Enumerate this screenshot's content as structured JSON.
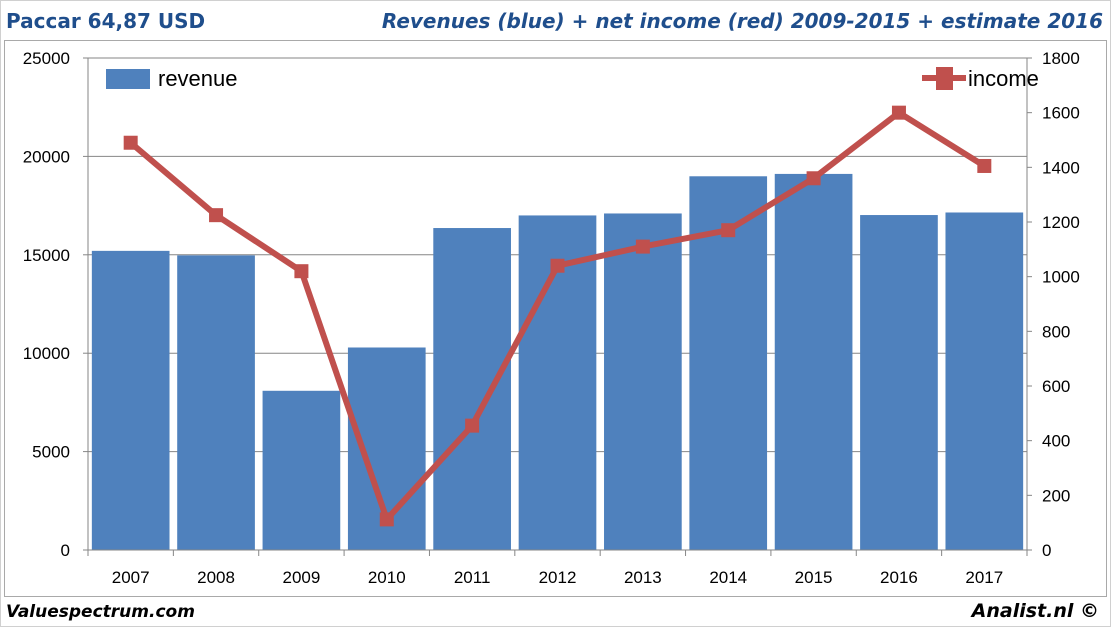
{
  "header": {
    "left_title": "Paccar 64,87 USD",
    "right_title": "Revenues (blue) + net income (red) 2009-2015 + estimate 2016"
  },
  "footer": {
    "left_text": "Valuespectrum.com",
    "right_text": "Analist.nl ©"
  },
  "colors": {
    "revenue": "#4f81bd",
    "income": "#c0504d",
    "title": "#1f4e8c",
    "grid": "#868686"
  },
  "chart_data": {
    "type": "bar",
    "title": "Revenues (blue) + net income (red) 2009-2015 + estimate 2016",
    "categories": [
      "2007",
      "2008",
      "2009",
      "2010",
      "2011",
      "2012",
      "2013",
      "2014",
      "2015",
      "2016",
      "2017"
    ],
    "series": [
      {
        "name": "revenue",
        "type": "bar",
        "axis": "left",
        "values": [
          15200,
          14970,
          8090,
          10290,
          16360,
          17000,
          17100,
          18990,
          19110,
          17020,
          17150
        ]
      },
      {
        "name": "income",
        "type": "line",
        "axis": "right",
        "values": [
          1490,
          1225,
          1020,
          112,
          455,
          1040,
          1110,
          1170,
          1360,
          1600,
          1405
        ]
      }
    ],
    "y_left": {
      "min": 0,
      "max": 25000,
      "ticks": [
        "0",
        "5000",
        "10000",
        "15000",
        "20000",
        "25000"
      ]
    },
    "y_right": {
      "min": 0,
      "max": 1800,
      "ticks": [
        "0",
        "200",
        "400",
        "600",
        "800",
        "1000",
        "1200",
        "1400",
        "1600",
        "1800"
      ]
    },
    "grid": true,
    "legend": [
      "revenue",
      "income"
    ],
    "legend_placement": "top-left and top-right"
  }
}
